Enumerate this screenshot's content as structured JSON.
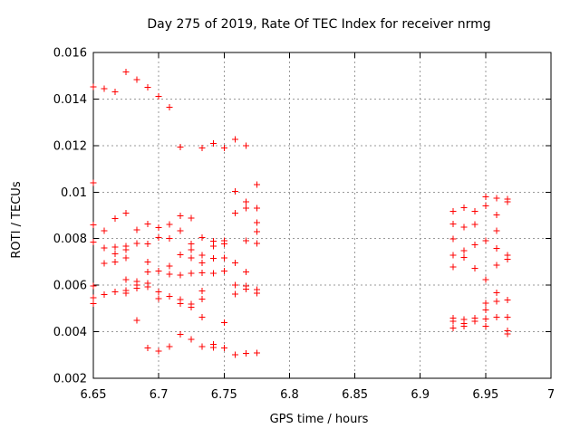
{
  "window": {
    "background": "#ffffff"
  },
  "chart_data": {
    "type": "scatter",
    "title": "Day 275 of 2019, Rate Of TEC Index for receiver nrmg",
    "xlabel": "GPS time / hours",
    "ylabel": "ROTI / TECUs",
    "xlim": [
      6.65,
      7.0
    ],
    "ylim": [
      0.002,
      0.016
    ],
    "x_ticks": [
      6.65,
      6.7,
      6.75,
      6.8,
      6.85,
      6.9,
      6.95,
      7.0
    ],
    "x_tick_labels": [
      "6.65",
      "6.7",
      "6.75",
      "6.8",
      "6.85",
      "6.9",
      "6.95",
      "7"
    ],
    "y_ticks": [
      0.002,
      0.004,
      0.006,
      0.008,
      0.01,
      0.012,
      0.014,
      0.016
    ],
    "y_tick_labels": [
      "0.002",
      "0.004",
      "0.006",
      "0.008",
      "0.01",
      "0.012",
      "0.014",
      "0.016"
    ],
    "grid": true,
    "legend": "none",
    "marker": {
      "shape": "plus",
      "color": "#ff0000",
      "size": 7
    },
    "frame_color": "#000000",
    "grid_color": "#9a9a9a",
    "series": [
      {
        "name": "ROTI",
        "points": [
          [
            6.65,
            0.01452
          ],
          [
            6.65,
            0.0104
          ],
          [
            6.65,
            0.0086
          ],
          [
            6.65,
            0.00786
          ],
          [
            6.65,
            0.00597
          ],
          [
            6.65,
            0.00546
          ],
          [
            6.65,
            0.00521
          ],
          [
            6.6583,
            0.01444
          ],
          [
            6.6583,
            0.00834
          ],
          [
            6.6583,
            0.0076
          ],
          [
            6.6583,
            0.00694
          ],
          [
            6.6583,
            0.0056
          ],
          [
            6.6667,
            0.0143
          ],
          [
            6.6667,
            0.00886
          ],
          [
            6.6667,
            0.00763
          ],
          [
            6.6667,
            0.00734
          ],
          [
            6.6667,
            0.007
          ],
          [
            6.6667,
            0.00572
          ],
          [
            6.675,
            0.01517
          ],
          [
            6.675,
            0.0091
          ],
          [
            6.675,
            0.00768
          ],
          [
            6.675,
            0.00752
          ],
          [
            6.675,
            0.00717
          ],
          [
            6.675,
            0.00624
          ],
          [
            6.675,
            0.00577
          ],
          [
            6.675,
            0.00566
          ],
          [
            6.6833,
            0.01483
          ],
          [
            6.6833,
            0.00838
          ],
          [
            6.6833,
            0.0078
          ],
          [
            6.6833,
            0.00616
          ],
          [
            6.6833,
            0.00601
          ],
          [
            6.6833,
            0.00587
          ],
          [
            6.6833,
            0.00449
          ],
          [
            6.6917,
            0.01451
          ],
          [
            6.6917,
            0.00864
          ],
          [
            6.6917,
            0.00778
          ],
          [
            6.6917,
            0.00699
          ],
          [
            6.6917,
            0.00656
          ],
          [
            6.6917,
            0.00608
          ],
          [
            6.6917,
            0.00592
          ],
          [
            6.6917,
            0.0033
          ],
          [
            6.7,
            0.01412
          ],
          [
            6.7,
            0.00848
          ],
          [
            6.7,
            0.00805
          ],
          [
            6.7,
            0.0066
          ],
          [
            6.7,
            0.00572
          ],
          [
            6.7,
            0.00543
          ],
          [
            6.7,
            0.00317
          ],
          [
            6.7083,
            0.01365
          ],
          [
            6.7083,
            0.00862
          ],
          [
            6.7083,
            0.008
          ],
          [
            6.7083,
            0.00682
          ],
          [
            6.7083,
            0.00647
          ],
          [
            6.7083,
            0.00552
          ],
          [
            6.7083,
            0.00336
          ],
          [
            6.7167,
            0.01193
          ],
          [
            6.7167,
            0.00899
          ],
          [
            6.7167,
            0.00833
          ],
          [
            6.7167,
            0.0073
          ],
          [
            6.7167,
            0.00643
          ],
          [
            6.7167,
            0.00539
          ],
          [
            6.7167,
            0.00521
          ],
          [
            6.7167,
            0.00389
          ],
          [
            6.725,
            0.00889
          ],
          [
            6.725,
            0.00778
          ],
          [
            6.725,
            0.00753
          ],
          [
            6.725,
            0.00717
          ],
          [
            6.725,
            0.00651
          ],
          [
            6.725,
            0.00518
          ],
          [
            6.725,
            0.00505
          ],
          [
            6.725,
            0.00367
          ],
          [
            6.7333,
            0.0119
          ],
          [
            6.7333,
            0.00805
          ],
          [
            6.7333,
            0.00728
          ],
          [
            6.7333,
            0.00695
          ],
          [
            6.7333,
            0.00654
          ],
          [
            6.7333,
            0.00576
          ],
          [
            6.7333,
            0.0054
          ],
          [
            6.7333,
            0.00462
          ],
          [
            6.7333,
            0.00337
          ],
          [
            6.7417,
            0.0121
          ],
          [
            6.7417,
            0.0079
          ],
          [
            6.7417,
            0.00768
          ],
          [
            6.7417,
            0.00716
          ],
          [
            6.7417,
            0.00651
          ],
          [
            6.7417,
            0.00346
          ],
          [
            6.7417,
            0.00333
          ],
          [
            6.75,
            0.0119
          ],
          [
            6.75,
            0.00792
          ],
          [
            6.75,
            0.00778
          ],
          [
            6.75,
            0.00717
          ],
          [
            6.75,
            0.0066
          ],
          [
            6.75,
            0.0044
          ],
          [
            6.75,
            0.0033
          ],
          [
            6.7583,
            0.01226
          ],
          [
            6.7583,
            0.01003
          ],
          [
            6.7583,
            0.00909
          ],
          [
            6.7583,
            0.00695
          ],
          [
            6.7583,
            0.006
          ],
          [
            6.7583,
            0.00561
          ],
          [
            6.7583,
            0.00302
          ],
          [
            6.7667,
            0.012
          ],
          [
            6.7667,
            0.00959
          ],
          [
            6.7667,
            0.00932
          ],
          [
            6.7667,
            0.00792
          ],
          [
            6.7667,
            0.00657
          ],
          [
            6.7667,
            0.00597
          ],
          [
            6.7667,
            0.00583
          ],
          [
            6.7667,
            0.00307
          ],
          [
            6.775,
            0.01032
          ],
          [
            6.775,
            0.00931
          ],
          [
            6.775,
            0.00869
          ],
          [
            6.775,
            0.0083
          ],
          [
            6.775,
            0.0078
          ],
          [
            6.775,
            0.00581
          ],
          [
            6.775,
            0.00566
          ],
          [
            6.775,
            0.00309
          ],
          [
            6.925,
            0.00918
          ],
          [
            6.925,
            0.00864
          ],
          [
            6.925,
            0.00798
          ],
          [
            6.925,
            0.00728
          ],
          [
            6.925,
            0.00679
          ],
          [
            6.925,
            0.00458
          ],
          [
            6.925,
            0.00445
          ],
          [
            6.925,
            0.00415
          ],
          [
            6.9333,
            0.00934
          ],
          [
            6.9333,
            0.00849
          ],
          [
            6.9333,
            0.00749
          ],
          [
            6.9333,
            0.00719
          ],
          [
            6.9333,
            0.00452
          ],
          [
            6.9333,
            0.00436
          ],
          [
            6.9333,
            0.00423
          ],
          [
            6.9417,
            0.00918
          ],
          [
            6.9417,
            0.00862
          ],
          [
            6.9417,
            0.00773
          ],
          [
            6.9417,
            0.00673
          ],
          [
            6.9417,
            0.00458
          ],
          [
            6.9417,
            0.00445
          ],
          [
            6.95,
            0.00979
          ],
          [
            6.95,
            0.0094
          ],
          [
            6.95,
            0.00792
          ],
          [
            6.95,
            0.00623
          ],
          [
            6.95,
            0.00523
          ],
          [
            6.95,
            0.00493
          ],
          [
            6.95,
            0.00454
          ],
          [
            6.95,
            0.00423
          ],
          [
            6.9583,
            0.00974
          ],
          [
            6.9583,
            0.00901
          ],
          [
            6.9583,
            0.00834
          ],
          [
            6.9583,
            0.00759
          ],
          [
            6.9583,
            0.00686
          ],
          [
            6.9583,
            0.00568
          ],
          [
            6.9583,
            0.0053
          ],
          [
            6.9583,
            0.00462
          ],
          [
            6.9667,
            0.0097
          ],
          [
            6.9667,
            0.00958
          ],
          [
            6.9667,
            0.00728
          ],
          [
            6.9667,
            0.00711
          ],
          [
            6.9667,
            0.00536
          ],
          [
            6.9667,
            0.00462
          ],
          [
            6.9667,
            0.00404
          ],
          [
            6.9667,
            0.0039
          ]
        ]
      }
    ]
  }
}
